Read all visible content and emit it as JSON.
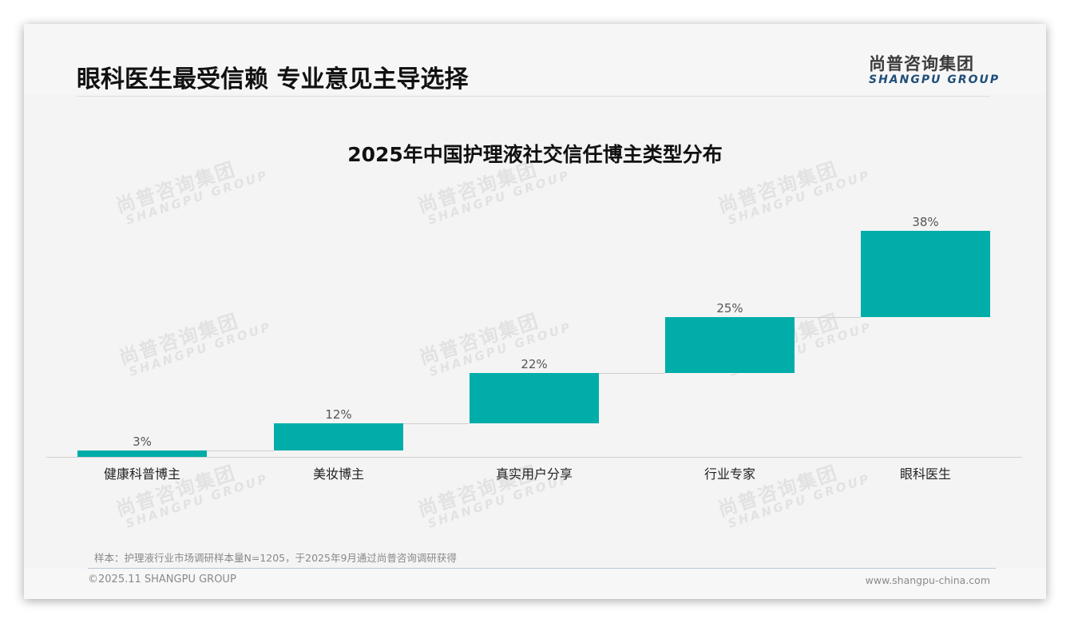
{
  "header": {
    "title": "眼科医生最受信赖 专业意见主导选择",
    "logo_cn": "尚普咨询集团",
    "logo_en": "SHANGPU GROUP"
  },
  "watermark": {
    "cn": "尚普咨询集团",
    "en": "SHANGPU GROUP"
  },
  "colors": {
    "bar": "#00ada9",
    "logo_en": "#1f4e79",
    "background": "#f4f4f4"
  },
  "chart_data": {
    "type": "bar",
    "subtype": "waterfall",
    "title": "2025年中国护理液社交信任博主类型分布",
    "categories": [
      "健康科普博主",
      "美妆博主",
      "真实用户分享",
      "行业专家",
      "眼科医生"
    ],
    "values": [
      3,
      12,
      22,
      25,
      38
    ],
    "value_labels": [
      "3%",
      "12%",
      "22%",
      "25%",
      "38%"
    ],
    "cumulative_start": [
      0,
      3,
      15,
      37,
      62
    ],
    "cumulative_end": [
      3,
      15,
      37,
      62,
      100
    ],
    "unit": "%",
    "xlabel": "",
    "ylabel": "",
    "ylim": [
      0,
      100
    ],
    "grid": false,
    "legend": null
  },
  "footer": {
    "note": "样本：护理液行业市场调研样本量N=1205，于2025年9月通过尚普咨询调研获得",
    "copyright": "©2025.11 SHANGPU GROUP",
    "website": "www.shangpu-china.com"
  }
}
